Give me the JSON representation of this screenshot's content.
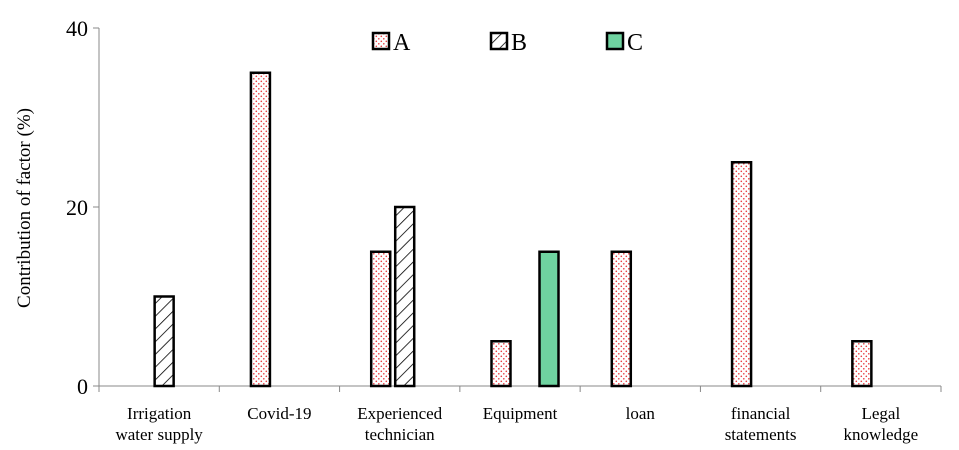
{
  "chart_data": {
    "type": "bar",
    "categories": [
      [
        "Irrigation",
        "water supply"
      ],
      [
        "Covid-19"
      ],
      [
        "Experienced",
        "technician"
      ],
      [
        "Equipment"
      ],
      [
        "loan"
      ],
      [
        "financial",
        "statements"
      ],
      [
        "Legal",
        "knowledge"
      ]
    ],
    "series": [
      {
        "name": "A",
        "values": [
          0,
          35,
          15,
          5,
          15,
          25,
          5
        ],
        "pattern": "dots",
        "color": "#e8383d"
      },
      {
        "name": "B",
        "values": [
          10,
          0,
          20,
          0,
          0,
          0,
          0
        ],
        "pattern": "hatch",
        "color": "#000000"
      },
      {
        "name": "C",
        "values": [
          0,
          0,
          0,
          15,
          0,
          0,
          0
        ],
        "pattern": "solid",
        "color": "#6fd3a0"
      }
    ],
    "ylabel": "Contribution of factor (%)",
    "xlabel": "",
    "ylim": [
      0,
      40
    ],
    "yticks": [
      0,
      20,
      40
    ],
    "grid": false,
    "legend": "top-center"
  }
}
